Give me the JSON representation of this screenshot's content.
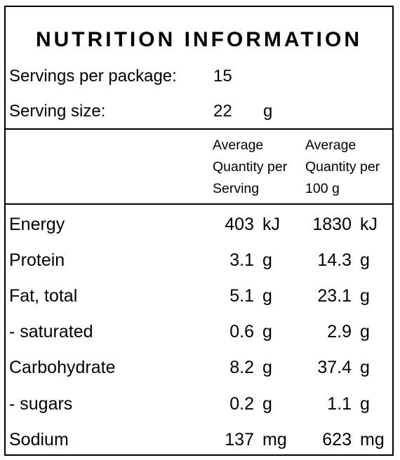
{
  "title": "NUTRITION INFORMATION",
  "servings": {
    "label": "Servings per package:",
    "value": "15"
  },
  "serving_size": {
    "label": "Serving size:",
    "value": "22",
    "unit": "g"
  },
  "columns": {
    "per_serving": [
      "Average",
      "Quantity per",
      "Serving"
    ],
    "per_100g": [
      "Average",
      "Quantity per",
      "100 g"
    ]
  },
  "rows": [
    {
      "label": "Energy",
      "serving": "403",
      "serving_unit": "kJ",
      "per100": "1830",
      "per100_unit": "kJ"
    },
    {
      "label": "Protein",
      "serving": "3.1",
      "serving_unit": "g",
      "per100": "14.3",
      "per100_unit": "g"
    },
    {
      "label": "Fat, total",
      "serving": "5.1",
      "serving_unit": "g",
      "per100": "23.1",
      "per100_unit": "g"
    },
    {
      "label": "- saturated",
      "serving": "0.6",
      "serving_unit": "g",
      "per100": "2.9",
      "per100_unit": "g"
    },
    {
      "label": "Carbohydrate",
      "serving": "8.2",
      "serving_unit": "g",
      "per100": "37.4",
      "per100_unit": "g"
    },
    {
      "label": "- sugars",
      "serving": "0.2",
      "serving_unit": "g",
      "per100": "1.1",
      "per100_unit": "g"
    },
    {
      "label": "Sodium",
      "serving": "137",
      "serving_unit": "mg",
      "per100": "623",
      "per100_unit": "mg"
    }
  ]
}
